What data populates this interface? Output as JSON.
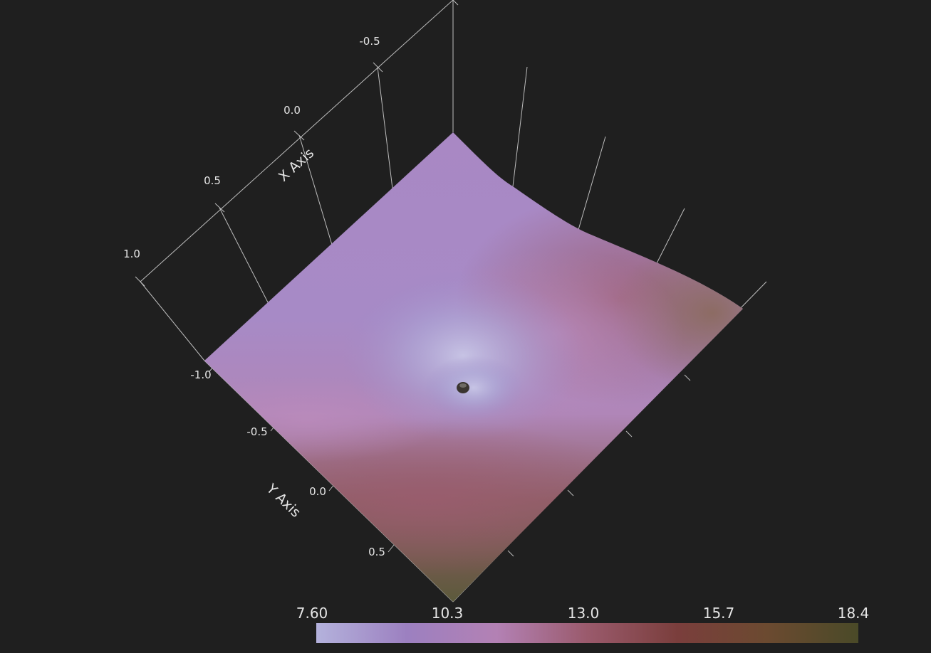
{
  "chart_data": {
    "type": "surface",
    "x_axis": {
      "title": "X Axis",
      "ticks": [
        "1.0",
        "0.5",
        "0.0",
        "-0.5"
      ]
    },
    "y_axis": {
      "title": "Y Axis",
      "ticks": [
        "-1.0",
        "-0.5",
        "0.0",
        "0.5"
      ]
    },
    "colorbar": {
      "ticks": [
        "7.60",
        "10.3",
        "13.0",
        "15.7",
        "18.4"
      ],
      "range": [
        7.6,
        18.4
      ],
      "colors": [
        "#b4b2dc",
        "#9c80c0",
        "#b381b4",
        "#9a5a6c",
        "#7a3e3c",
        "#6b4a30",
        "#4a4a28"
      ]
    },
    "surface_colors": {
      "low": "#b0aed8",
      "mid": "#a889c4",
      "pink": "#b888b4",
      "rose": "#9a5a6c",
      "brown": "#7c5e50",
      "olive": "#5a5a3a"
    }
  }
}
